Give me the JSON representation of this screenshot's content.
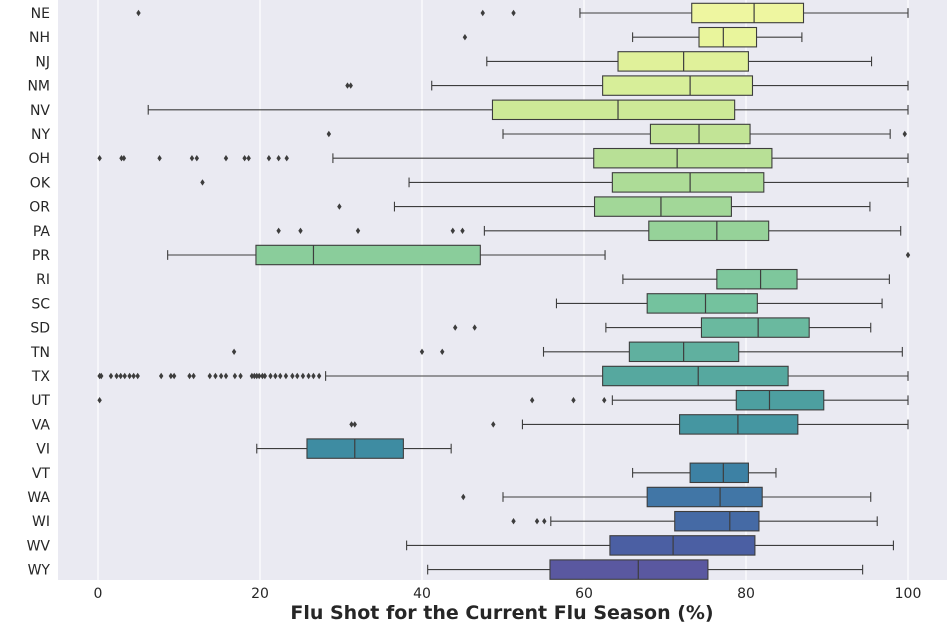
{
  "chart_data": {
    "type": "box",
    "xlabel": "Flu Shot for the Current Flu Season (%)",
    "ylabel": "",
    "xlim": [
      -5,
      105
    ],
    "x_ticks": [
      0,
      20,
      40,
      60,
      80,
      100
    ],
    "grid": "vertical",
    "palette": "viridis-like yellow to purple",
    "series": [
      {
        "state": "NE",
        "whisker_low": 59.5,
        "q1": 73.3,
        "median": 81.0,
        "q3": 87.1,
        "whisker_high": 100,
        "outliers": [
          5.0,
          47.5,
          51.3
        ]
      },
      {
        "state": "NH",
        "whisker_low": 66.0,
        "q1": 74.2,
        "median": 77.2,
        "q3": 81.3,
        "whisker_high": 86.9,
        "outliers": [
          45.3
        ]
      },
      {
        "state": "NJ",
        "whisker_low": 48.0,
        "q1": 64.2,
        "median": 72.3,
        "q3": 80.3,
        "whisker_high": 95.5,
        "outliers": []
      },
      {
        "state": "NM",
        "whisker_low": 41.2,
        "q1": 62.3,
        "median": 73.1,
        "q3": 80.8,
        "whisker_high": 100,
        "outliers": [
          30.8,
          31.2
        ]
      },
      {
        "state": "NV",
        "whisker_low": 6.2,
        "q1": 48.7,
        "median": 64.2,
        "q3": 78.6,
        "whisker_high": 100,
        "outliers": []
      },
      {
        "state": "NY",
        "whisker_low": 50.0,
        "q1": 68.2,
        "median": 74.2,
        "q3": 80.5,
        "whisker_high": 97.8,
        "outliers": [
          28.5,
          99.6
        ]
      },
      {
        "state": "OH",
        "whisker_low": 29.0,
        "q1": 61.2,
        "median": 71.5,
        "q3": 83.2,
        "whisker_high": 100,
        "outliers": [
          0.2,
          2.9,
          3.2,
          7.6,
          11.6,
          12.2,
          15.8,
          18.1,
          18.6,
          21.1,
          22.3,
          23.3
        ]
      },
      {
        "state": "OK",
        "whisker_low": 38.4,
        "q1": 63.5,
        "median": 73.1,
        "q3": 82.2,
        "whisker_high": 100,
        "outliers": [
          12.9
        ]
      },
      {
        "state": "OR",
        "whisker_low": 36.6,
        "q1": 61.3,
        "median": 69.5,
        "q3": 78.2,
        "whisker_high": 95.3,
        "outliers": [
          29.8
        ]
      },
      {
        "state": "PA",
        "whisker_low": 47.7,
        "q1": 68.0,
        "median": 76.4,
        "q3": 82.8,
        "whisker_high": 99.1,
        "outliers": [
          22.3,
          25.0,
          32.1,
          43.8,
          45.0
        ]
      },
      {
        "state": "PR",
        "whisker_low": 8.6,
        "q1": 19.5,
        "median": 26.6,
        "q3": 47.2,
        "whisker_high": 62.6,
        "outliers": [
          100
        ]
      },
      {
        "state": "RI",
        "whisker_low": 64.8,
        "q1": 76.4,
        "median": 81.8,
        "q3": 86.3,
        "whisker_high": 97.7,
        "outliers": []
      },
      {
        "state": "SC",
        "whisker_low": 56.6,
        "q1": 67.8,
        "median": 75.0,
        "q3": 81.4,
        "whisker_high": 96.8,
        "outliers": []
      },
      {
        "state": "SD",
        "whisker_low": 62.7,
        "q1": 74.5,
        "median": 81.5,
        "q3": 87.8,
        "whisker_high": 95.4,
        "outliers": [
          44.1,
          46.5
        ]
      },
      {
        "state": "TN",
        "whisker_low": 55.0,
        "q1": 65.6,
        "median": 72.3,
        "q3": 79.1,
        "whisker_high": 99.3,
        "outliers": [
          16.8,
          40.0,
          42.5
        ]
      },
      {
        "state": "TX",
        "whisker_low": 28.1,
        "q1": 62.3,
        "median": 74.1,
        "q3": 85.2,
        "whisker_high": 100,
        "outliers": [
          0.2,
          0.4,
          1.6,
          2.3,
          2.8,
          3.3,
          3.9,
          4.4,
          4.9,
          7.8,
          9.0,
          9.4,
          11.3,
          11.8,
          13.8,
          14.5,
          15.2,
          15.8,
          16.9,
          17.6,
          19.0,
          19.3,
          19.6,
          19.9,
          20.3,
          20.6,
          21.3,
          21.9,
          22.5,
          23.2,
          24.0,
          24.6,
          25.3,
          26.0,
          26.6,
          27.3
        ]
      },
      {
        "state": "UT",
        "whisker_low": 63.5,
        "q1": 78.8,
        "median": 82.9,
        "q3": 89.6,
        "whisker_high": 100,
        "outliers": [
          0.2,
          53.6,
          58.7,
          62.5
        ]
      },
      {
        "state": "VA",
        "whisker_low": 52.4,
        "q1": 71.8,
        "median": 79.0,
        "q3": 86.4,
        "whisker_high": 100,
        "outliers": [
          31.3,
          31.7,
          48.8
        ]
      },
      {
        "state": "VI",
        "whisker_low": 19.6,
        "q1": 25.8,
        "median": 31.7,
        "q3": 37.7,
        "whisker_high": 43.6,
        "outliers": []
      },
      {
        "state": "VT",
        "whisker_low": 66.0,
        "q1": 73.1,
        "median": 77.2,
        "q3": 80.3,
        "whisker_high": 83.7,
        "outliers": []
      },
      {
        "state": "WA",
        "whisker_low": 50.0,
        "q1": 67.8,
        "median": 76.8,
        "q3": 82.0,
        "whisker_high": 95.4,
        "outliers": [
          45.1
        ]
      },
      {
        "state": "WI",
        "whisker_low": 55.9,
        "q1": 71.2,
        "median": 78.0,
        "q3": 81.6,
        "whisker_high": 96.2,
        "outliers": [
          51.3,
          54.2,
          55.1
        ]
      },
      {
        "state": "WV",
        "whisker_low": 38.1,
        "q1": 63.2,
        "median": 71.0,
        "q3": 81.1,
        "whisker_high": 98.2,
        "outliers": []
      },
      {
        "state": "WY",
        "whisker_low": 40.7,
        "q1": 55.8,
        "median": 66.7,
        "q3": 75.3,
        "whisker_high": 94.4,
        "outliers": []
      }
    ],
    "colors": [
      "#eef6a0",
      "#e9f59c",
      "#e0f19a",
      "#d7ee99",
      "#cde997",
      "#c2e496",
      "#b8e096",
      "#addc97",
      "#a2d798",
      "#96d299",
      "#8acd9b",
      "#7ec79c",
      "#74c29e",
      "#6ab99f",
      "#60b09f",
      "#56a89f",
      "#4d9fa0",
      "#4596a1",
      "#3e8ca2",
      "#3d81a4",
      "#4176a6",
      "#456aa5",
      "#4b5fa3",
      "#5a58a0"
    ]
  }
}
